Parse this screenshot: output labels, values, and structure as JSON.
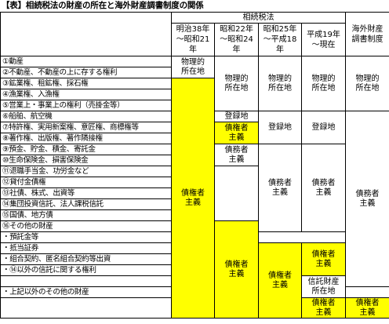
{
  "title": "【表】相続税法の財産の所在と海外財産調書制度の関係",
  "header": {
    "group": "相続税法",
    "p1": "明治38年\n～昭和21\n年",
    "p2": "昭和22年\n～昭和24\n年",
    "p3": "昭和25年\n～平成18\n年",
    "p4": "平成19年\n～現在",
    "p5": "海外財産\n調書制度"
  },
  "items": [
    "①動産",
    "②不動産、不動産の上に存する権利",
    "③鉱業権、租鉱権、採石権",
    "④漁業権、入漁権",
    "⑤営業上・事業上の権利（売掛金等）",
    "⑥船舶、航空機",
    "⑦特許権、実用新案権、意匠権、商標権等",
    "⑧著作権、出版権、著作隣接権",
    "⑨預金、貯金、積金、寄託金",
    "⑩生命保険金、損害保険金",
    "⑪退職手当金、功労金など",
    "⑫貸付金債権",
    "⑬社債、株式、出資等",
    "⑭集団投資信託、法人課税信託",
    "⑮国債、地方債",
    "⑯その他の財産",
    "・預託金等",
    "・抵当証券",
    "・組合契約、匿名組合契約等出資",
    "・⑭以外の信託に関する権利",
    "",
    "・上記以外のその他の財産",
    ""
  ],
  "cells": {
    "p1_location": "物理的\n所在地",
    "p1_creditor": "債権者\n主義",
    "p2_location": "物理的\n所在地",
    "p2_registry": "登録地",
    "p2_creditor_a": "債権者\n主義",
    "p2_debtor": "債務者\n主義",
    "p2_creditor_b": "債権者\n主義",
    "p3_location": "物理的\n所在地",
    "p3_registry": "登録地",
    "p3_debtor": "債務者\n主義",
    "p3_creditor": "債権者\n主義",
    "p4_location": "物理的\n所在地",
    "p4_registry": "登録地",
    "p4_debtor": "債務者\n主義",
    "p4_creditor_a": "債権者\n主義",
    "p4_trust": "信託財産\n所在地",
    "p4_creditor_b": "債権者\n主義",
    "p5_location": "物理的\n所在地",
    "p5_debtor": "債務者\n主義",
    "p5_creditor": "債権者\n主義"
  },
  "colors": {
    "highlight": "#ffff00",
    "border": "#000000"
  }
}
